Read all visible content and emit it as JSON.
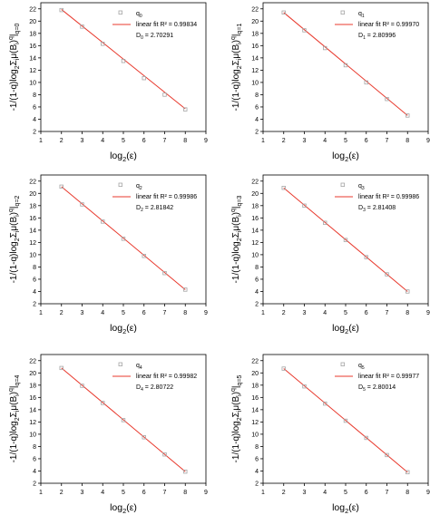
{
  "figure": {
    "colors": {
      "fit": "#e8392d",
      "marker": "#a6a6a6",
      "axis": "#000000"
    }
  },
  "chart_data": [
    {
      "type": "scatter",
      "xlabel": "log2(ε)",
      "ylabel_sub": "q=0",
      "xlim": [
        1,
        9
      ],
      "ylim": [
        2,
        23
      ],
      "xticks": [
        1,
        2,
        3,
        4,
        5,
        6,
        7,
        8,
        9
      ],
      "yticks": [
        2,
        4,
        6,
        8,
        10,
        12,
        14,
        16,
        18,
        20,
        22
      ],
      "grid": false,
      "legend_position": "top-right",
      "legend": {
        "marker_label": "q",
        "marker_sub": "0",
        "fit_label": "linear fit R² = 0.99834",
        "dim_label": "D",
        "dim_sub": "0",
        "dim_value": "= 2.70291"
      },
      "series": [
        {
          "x": [
            2,
            3,
            4,
            5,
            6,
            7,
            8
          ],
          "y": [
            21.8,
            19.1,
            16.3,
            13.5,
            10.7,
            8.0,
            5.6
          ]
        }
      ],
      "fit": {
        "x": [
          2,
          8
        ],
        "y": [
          21.9,
          5.7
        ]
      }
    },
    {
      "type": "scatter",
      "xlabel": "log2(ε)",
      "ylabel_sub": "q=1",
      "xlim": [
        1,
        9
      ],
      "ylim": [
        2,
        23
      ],
      "xticks": [
        1,
        2,
        3,
        4,
        5,
        6,
        7,
        8,
        9
      ],
      "yticks": [
        2,
        4,
        6,
        8,
        10,
        12,
        14,
        16,
        18,
        20,
        22
      ],
      "grid": false,
      "legend_position": "top-right",
      "legend": {
        "marker_label": "q",
        "marker_sub": "1",
        "fit_label": "linear fit R² = 0.99970",
        "dim_label": "D",
        "dim_sub": "1",
        "dim_value": "= 2.80996"
      },
      "series": [
        {
          "x": [
            2,
            3,
            4,
            5,
            6,
            7,
            8
          ],
          "y": [
            21.4,
            18.5,
            15.6,
            12.8,
            10.0,
            7.3,
            4.6
          ]
        }
      ],
      "fit": {
        "x": [
          2,
          8
        ],
        "y": [
          21.4,
          4.6
        ]
      }
    },
    {
      "type": "scatter",
      "xlabel": "log2(ε)",
      "ylabel_sub": "q=2",
      "xlim": [
        1,
        9
      ],
      "ylim": [
        2,
        23
      ],
      "xticks": [
        1,
        2,
        3,
        4,
        5,
        6,
        7,
        8,
        9
      ],
      "yticks": [
        2,
        4,
        6,
        8,
        10,
        12,
        14,
        16,
        18,
        20,
        22
      ],
      "grid": false,
      "legend_position": "top-right",
      "legend": {
        "marker_label": "q",
        "marker_sub": "2",
        "fit_label": "linear fit R² = 0.99986",
        "dim_label": "D",
        "dim_sub": "2",
        "dim_value": "= 2.81842"
      },
      "series": [
        {
          "x": [
            2,
            3,
            4,
            5,
            6,
            7,
            8
          ],
          "y": [
            21.1,
            18.2,
            15.4,
            12.6,
            9.8,
            7.0,
            4.3
          ]
        }
      ],
      "fit": {
        "x": [
          2,
          8
        ],
        "y": [
          21.1,
          4.3
        ]
      }
    },
    {
      "type": "scatter",
      "xlabel": "log2(ε)",
      "ylabel_sub": "q=3",
      "xlim": [
        1,
        9
      ],
      "ylim": [
        2,
        23
      ],
      "xticks": [
        1,
        2,
        3,
        4,
        5,
        6,
        7,
        8,
        9
      ],
      "yticks": [
        2,
        4,
        6,
        8,
        10,
        12,
        14,
        16,
        18,
        20,
        22
      ],
      "grid": false,
      "legend_position": "top-right",
      "legend": {
        "marker_label": "q",
        "marker_sub": "3",
        "fit_label": "linear fit R² = 0.99986",
        "dim_label": "D",
        "dim_sub": "3",
        "dim_value": "= 2.81408"
      },
      "series": [
        {
          "x": [
            2,
            3,
            4,
            5,
            6,
            7,
            8
          ],
          "y": [
            20.9,
            18.0,
            15.2,
            12.4,
            9.6,
            6.8,
            4.0
          ]
        }
      ],
      "fit": {
        "x": [
          2,
          8
        ],
        "y": [
          20.9,
          4.0
        ]
      }
    },
    {
      "type": "scatter",
      "xlabel": "log2(ε)",
      "ylabel_sub": "q=4",
      "xlim": [
        1,
        9
      ],
      "ylim": [
        2,
        23
      ],
      "xticks": [
        1,
        2,
        3,
        4,
        5,
        6,
        7,
        8,
        9
      ],
      "yticks": [
        2,
        4,
        6,
        8,
        10,
        12,
        14,
        16,
        18,
        20,
        22
      ],
      "grid": false,
      "legend_position": "top-right",
      "legend": {
        "marker_label": "q",
        "marker_sub": "4",
        "fit_label": "linear fit R² = 0.99982",
        "dim_label": "D",
        "dim_sub": "4",
        "dim_value": "= 2.80722"
      },
      "series": [
        {
          "x": [
            2,
            3,
            4,
            5,
            6,
            7,
            8
          ],
          "y": [
            20.8,
            17.9,
            15.1,
            12.3,
            9.5,
            6.7,
            3.9
          ]
        }
      ],
      "fit": {
        "x": [
          2,
          8
        ],
        "y": [
          20.8,
          3.9
        ]
      }
    },
    {
      "type": "scatter",
      "xlabel": "log2(ε)",
      "ylabel_sub": "q=5",
      "xlim": [
        1,
        9
      ],
      "ylim": [
        2,
        23
      ],
      "xticks": [
        1,
        2,
        3,
        4,
        5,
        6,
        7,
        8,
        9
      ],
      "yticks": [
        2,
        4,
        6,
        8,
        10,
        12,
        14,
        16,
        18,
        20,
        22
      ],
      "grid": false,
      "legend_position": "top-right",
      "legend": {
        "marker_label": "q",
        "marker_sub": "5",
        "fit_label": "linear fit R² = 0.99977",
        "dim_label": "D",
        "dim_sub": "5",
        "dim_value": "= 2.80014"
      },
      "series": [
        {
          "x": [
            2,
            3,
            4,
            5,
            6,
            7,
            8
          ],
          "y": [
            20.7,
            17.8,
            15.0,
            12.2,
            9.4,
            6.6,
            3.8
          ]
        }
      ],
      "fit": {
        "x": [
          2,
          8
        ],
        "y": [
          20.7,
          3.8
        ]
      }
    }
  ]
}
